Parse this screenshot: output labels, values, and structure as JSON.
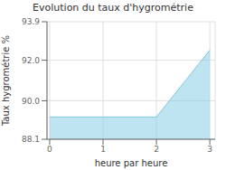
{
  "chart_data": {
    "type": "area",
    "title": "Evolution du taux d'hygrométrie",
    "xlabel": "heure par heure",
    "ylabel": "Taux hygrométrie %",
    "x": [
      0,
      1,
      2,
      3
    ],
    "values": [
      89.2,
      89.2,
      89.2,
      92.5
    ],
    "color": "#7ec8e3",
    "xlim": [
      -0.05,
      3.1
    ],
    "ylim": [
      88.1,
      93.9
    ],
    "xticks": [
      0,
      1,
      2,
      3
    ],
    "yticks": [
      88.1,
      {
        "value": 90.0,
        "label": "90.0"
      },
      {
        "value": 92.0,
        "label": "92.0"
      },
      93.9
    ],
    "grid": true
  }
}
